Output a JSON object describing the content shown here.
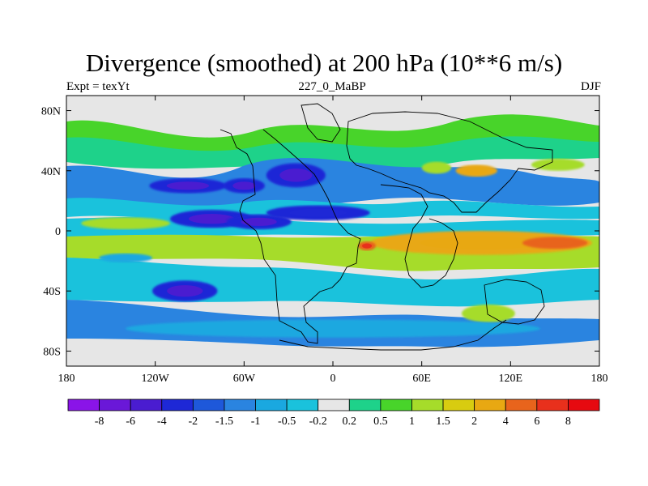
{
  "title": "Divergence (smoothed) at 200 hPa (10**6 m/s)",
  "subtitle_left": "Expt = texYt",
  "subtitle_center": "227_0_MaBP",
  "subtitle_right": "DJF",
  "colors": {
    "neutral": "#e6e6e6",
    "coast": "#000000"
  },
  "chart_data": {
    "type": "heatmap",
    "title": "Divergence (smoothed) at 200 hPa (10**6 m/s)",
    "units": "10**6 m/s",
    "xlim": [
      -180,
      180
    ],
    "ylim": [
      -90,
      90
    ],
    "x_ticks": [
      {
        "value": -180,
        "label": "180"
      },
      {
        "value": -120,
        "label": "120W"
      },
      {
        "value": -60,
        "label": "60W"
      },
      {
        "value": 0,
        "label": "0"
      },
      {
        "value": 60,
        "label": "60E"
      },
      {
        "value": 120,
        "label": "120E"
      },
      {
        "value": 180,
        "label": "180"
      }
    ],
    "y_ticks": [
      {
        "value": 80,
        "label": "80N"
      },
      {
        "value": 40,
        "label": "40N"
      },
      {
        "value": 0,
        "label": "0"
      },
      {
        "value": -40,
        "label": "40S"
      },
      {
        "value": -80,
        "label": "80S"
      }
    ],
    "colorbar": {
      "labels": [
        "-8",
        "-6",
        "-4",
        "-2",
        "-1.5",
        "-1",
        "-0.5",
        "-0.2",
        "0.2",
        "0.5",
        "1",
        "1.5",
        "2",
        "4",
        "6",
        "8"
      ],
      "colors": [
        "#8a14e8",
        "#6a18d8",
        "#4a1cd0",
        "#1e28d6",
        "#1e58da",
        "#2a84e0",
        "#1aa8e0",
        "#1ac2dc",
        "#e6e6e6",
        "#1ed28a",
        "#48d42a",
        "#a6dc2a",
        "#d8cc10",
        "#e8a812",
        "#e8641c",
        "#e8301c",
        "#e60a10"
      ]
    },
    "features": [
      {
        "lon": -98,
        "lat": 30,
        "rx": 26,
        "ry": 5,
        "value": -2.5
      },
      {
        "lon": -60,
        "lat": 30,
        "rx": 14,
        "ry": 5,
        "value": -2.5
      },
      {
        "lon": -25,
        "lat": 37,
        "rx": 20,
        "ry": 8,
        "value": -2.5
      },
      {
        "lon": 70,
        "lat": 42,
        "rx": 10,
        "ry": 4,
        "value": 1.5
      },
      {
        "lon": 97,
        "lat": 40,
        "rx": 14,
        "ry": 4,
        "value": 2.5
      },
      {
        "lon": 152,
        "lat": 44,
        "rx": 18,
        "ry": 4,
        "value": 1.5
      },
      {
        "lon": -140,
        "lat": 5,
        "rx": 30,
        "ry": 4,
        "value": 1.5
      },
      {
        "lon": -82,
        "lat": 8,
        "rx": 28,
        "ry": 6,
        "value": -3
      },
      {
        "lon": -50,
        "lat": 6,
        "rx": 22,
        "ry": 5,
        "value": -3
      },
      {
        "lon": -10,
        "lat": 12,
        "rx": 35,
        "ry": 5,
        "value": -2
      },
      {
        "lon": 100,
        "lat": -8,
        "rx": 75,
        "ry": 8,
        "value": 2.5
      },
      {
        "lon": 150,
        "lat": -8,
        "rx": 22,
        "ry": 4,
        "value": 4.5
      },
      {
        "lon": 23,
        "lat": -10,
        "rx": 6,
        "ry": 3,
        "value": 5
      },
      {
        "lon": -100,
        "lat": -40,
        "rx": 22,
        "ry": 7,
        "value": -3
      },
      {
        "lon": -140,
        "lat": -18,
        "rx": 18,
        "ry": 3,
        "value": -0.8
      },
      {
        "lon": 105,
        "lat": -55,
        "rx": 18,
        "ry": 6,
        "value": 1.5
      },
      {
        "lon": 0,
        "lat": -65,
        "rx": 140,
        "ry": 6,
        "value": -0.5
      }
    ]
  },
  "colorbar_labels_display": [
    "-8",
    "-6",
    "-4",
    "-2",
    "-1.5",
    "-1",
    "-0.5",
    "-0.2",
    "0.2",
    "0.5",
    "1",
    "1.5",
    "2",
    "4",
    "6",
    "8"
  ]
}
